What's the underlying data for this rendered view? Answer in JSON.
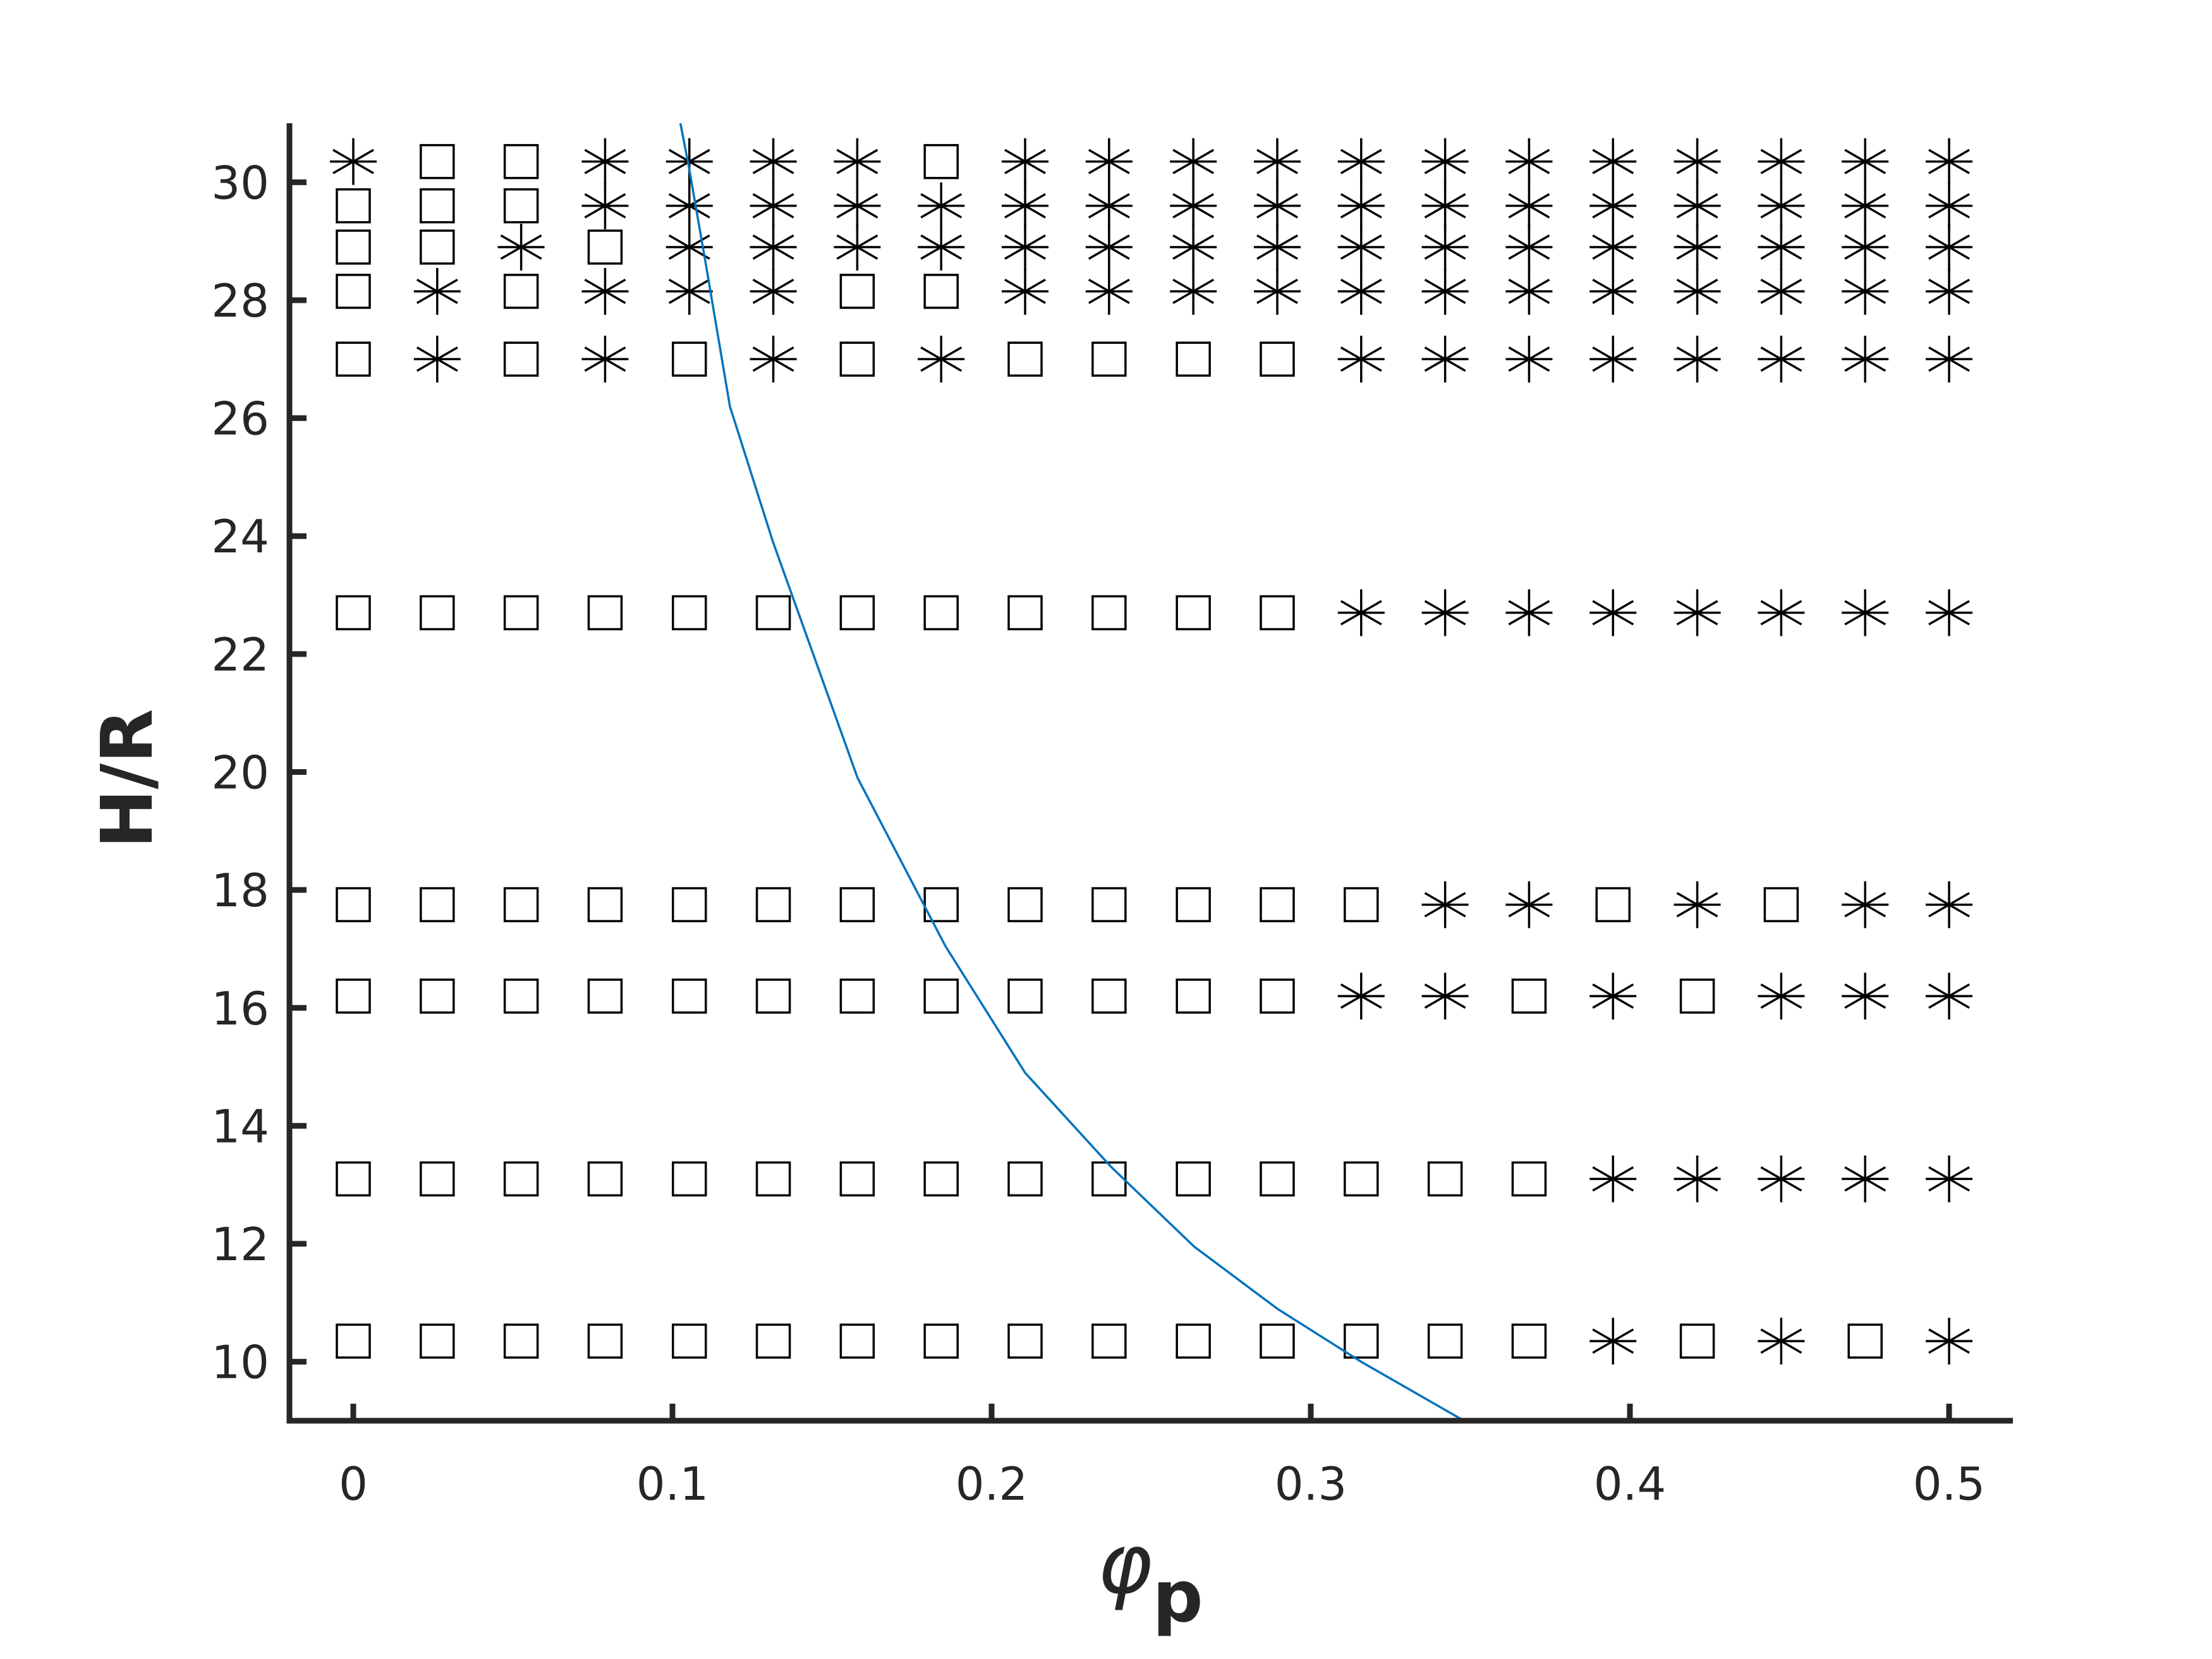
{
  "chart_data": {
    "type": "scatter",
    "xlabel": "φ",
    "xlabel_subscript": "p",
    "ylabel": "H/R",
    "xlim": [
      -0.02,
      0.52
    ],
    "ylim": [
      9,
      31
    ],
    "x_ticks": [
      {
        "value": 0,
        "label": "0"
      },
      {
        "value": 0.1,
        "label": "0.1"
      },
      {
        "value": 0.2,
        "label": "0.2"
      },
      {
        "value": 0.3,
        "label": "0.3"
      },
      {
        "value": 0.4,
        "label": "0.4"
      },
      {
        "value": 0.5,
        "label": "0.5"
      }
    ],
    "y_ticks": [
      {
        "value": 10,
        "label": "10"
      },
      {
        "value": 12,
        "label": "12"
      },
      {
        "value": 14,
        "label": "14"
      },
      {
        "value": 16,
        "label": "16"
      },
      {
        "value": 18,
        "label": "18"
      },
      {
        "value": 20,
        "label": "20"
      },
      {
        "value": 22,
        "label": "22"
      },
      {
        "value": 24,
        "label": "24"
      },
      {
        "value": 26,
        "label": "26"
      },
      {
        "value": 28,
        "label": "28"
      },
      {
        "value": 30,
        "label": "30"
      }
    ],
    "grid": false,
    "legend": "none",
    "x_values": [
      0,
      0.0263,
      0.0526,
      0.0789,
      0.1053,
      0.1316,
      0.1579,
      0.1842,
      0.2105,
      0.2368,
      0.2632,
      0.2895,
      0.3158,
      0.3421,
      0.3684,
      0.3947,
      0.4211,
      0.4474,
      0.4737,
      0.5
    ],
    "marker_key": {
      "S": "square",
      "A": "asterisk"
    },
    "marker_rows": [
      {
        "y": 30.35,
        "markers": "ASSAAAASAAAAAAAAAAAA"
      },
      {
        "y": 29.6,
        "markers": "SSSAAAAAAAAAAAAAAAAA"
      },
      {
        "y": 28.9,
        "markers": "SSASAAAAAAAAAAAAAAAA"
      },
      {
        "y": 28.15,
        "markers": "SASAAASSAAAAAAAAAAAA"
      },
      {
        "y": 27.0,
        "markers": "SASASASASSSSAAAAAAAA"
      },
      {
        "y": 22.7,
        "markers": "SSSSSSSSSSSSAAAAAAAA"
      },
      {
        "y": 17.75,
        "markers": "SSSSSSSSSSSSSAASASAA"
      },
      {
        "y": 16.2,
        "markers": "SSSSSSSSSSSSAASASAAA"
      },
      {
        "y": 13.1,
        "markers": "SSSSSSSSSSSSSSSAAAAA"
      },
      {
        "y": 10.35,
        "markers": "SSSSSSSSSSSSSSSASASA"
      }
    ],
    "boundary_line": {
      "color": "#0072bd",
      "points": [
        [
          0.1025,
          31
        ],
        [
          0.105,
          30.3
        ],
        [
          0.1105,
          28.6
        ],
        [
          0.118,
          26.2
        ],
        [
          0.1315,
          23.9
        ],
        [
          0.158,
          19.9
        ],
        [
          0.1855,
          17.05
        ],
        [
          0.2105,
          14.9
        ],
        [
          0.2375,
          13.3
        ],
        [
          0.2635,
          11.95
        ],
        [
          0.2895,
          10.9
        ],
        [
          0.3158,
          10.0
        ],
        [
          0.348,
          9.0
        ]
      ]
    }
  }
}
